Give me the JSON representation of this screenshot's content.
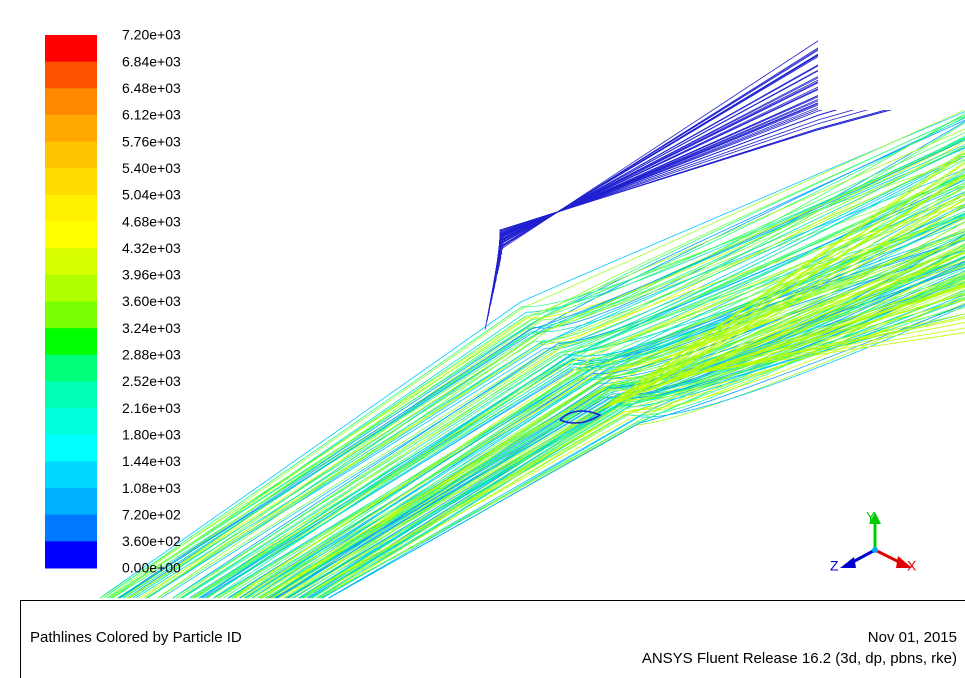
{
  "colorbar": {
    "labels": [
      "7.20e+03",
      "6.84e+03",
      "6.48e+03",
      "6.12e+03",
      "5.76e+03",
      "5.40e+03",
      "5.04e+03",
      "4.68e+03",
      "4.32e+03",
      "3.96e+03",
      "3.60e+03",
      "3.24e+03",
      "2.88e+03",
      "2.52e+03",
      "2.16e+03",
      "1.80e+03",
      "1.44e+03",
      "1.08e+03",
      "7.20e+02",
      "3.60e+02",
      "0.00e+00"
    ],
    "colors": [
      "#ff0000",
      "#ff5200",
      "#ff8a00",
      "#ffa800",
      "#ffc400",
      "#ffdc00",
      "#fff000",
      "#ffff00",
      "#d8ff00",
      "#b0ff00",
      "#78ff00",
      "#00ff00",
      "#00ff78",
      "#00ffb4",
      "#00ffdc",
      "#00ffff",
      "#00d8ff",
      "#00b0ff",
      "#0078ff",
      "#0000ff"
    ]
  },
  "axes": {
    "x": "X",
    "y": "Y",
    "z": "Z"
  },
  "footer": {
    "title": "Pathlines Colored by Particle ID",
    "date": "Nov 01, 2015",
    "release": "ANSYS Fluent Release 16.2 (3d, dp, pbns, rke)"
  }
}
